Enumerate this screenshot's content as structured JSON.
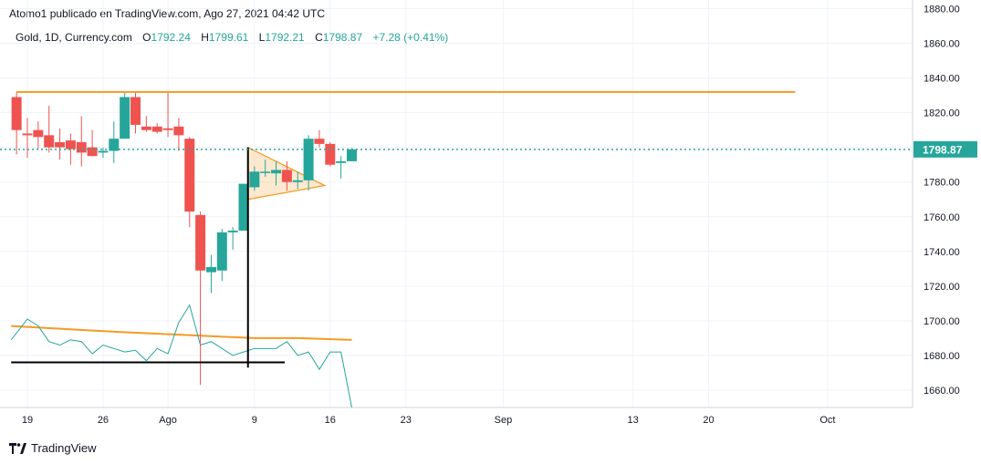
{
  "header": {
    "publisher": "Atomo1 publicado en TradingView.com, Ago 27, 2021 04:42 UTC"
  },
  "legend": {
    "symbol": "Gold, 1D, Currency.com",
    "open_label": "O",
    "open": "1792.24",
    "high_label": "H",
    "high": "1799.61",
    "low_label": "L",
    "low": "1792.21",
    "close_label": "C",
    "close": "1798.87",
    "change": "+7.28 (+0.41%)"
  },
  "footer": {
    "brand": "TradingView"
  },
  "colors": {
    "up": "#26a69a",
    "down": "#ef5350",
    "orange": "#f59a23",
    "price_label_bg": "#26a69a",
    "grid": "#f0f3fa",
    "axis_text": "#131722"
  },
  "chart_data": {
    "type": "candlestick",
    "title": "Gold, 1D, Currency.com",
    "ylim": [
      1650,
      1885
    ],
    "y_ticks": [
      "1880.00",
      "1860.00",
      "1840.00",
      "1820.00",
      "1800.00",
      "1780.00",
      "1760.00",
      "1740.00",
      "1720.00",
      "1700.00",
      "1680.00",
      "1660.00"
    ],
    "x_ticks": [
      {
        "label": "19",
        "day": 0
      },
      {
        "label": "26",
        "day": 7
      },
      {
        "label": "Ago",
        "day": 13
      },
      {
        "label": "9",
        "day": 21
      },
      {
        "label": "16",
        "day": 28
      },
      {
        "label": "23",
        "day": 35
      },
      {
        "label": "Sep",
        "day": 44
      },
      {
        "label": "13",
        "day": 56
      },
      {
        "label": "20",
        "day": 63
      },
      {
        "label": "Oct",
        "day": 74
      }
    ],
    "current_price": "1798.87",
    "candles": [
      {
        "day": -1,
        "o": 1829,
        "h": 1832,
        "l": 1796,
        "c": 1810
      },
      {
        "day": 0,
        "o": 1808,
        "h": 1817,
        "l": 1794,
        "c": 1807
      },
      {
        "day": 1,
        "o": 1810,
        "h": 1815,
        "l": 1799,
        "c": 1806
      },
      {
        "day": 2,
        "o": 1807,
        "h": 1824,
        "l": 1797,
        "c": 1800
      },
      {
        "day": 3,
        "o": 1803,
        "h": 1811,
        "l": 1793,
        "c": 1800
      },
      {
        "day": 4,
        "o": 1804,
        "h": 1808,
        "l": 1790,
        "c": 1799
      },
      {
        "day": 5,
        "o": 1803,
        "h": 1818,
        "l": 1789,
        "c": 1797
      },
      {
        "day": 6,
        "o": 1800,
        "h": 1810,
        "l": 1795,
        "c": 1795
      },
      {
        "day": 7,
        "o": 1797,
        "h": 1800,
        "l": 1794,
        "c": 1798
      },
      {
        "day": 8,
        "o": 1798,
        "h": 1815,
        "l": 1791,
        "c": 1805
      },
      {
        "day": 9,
        "o": 1805,
        "h": 1832,
        "l": 1805,
        "c": 1829
      },
      {
        "day": 10,
        "o": 1829,
        "h": 1832,
        "l": 1808,
        "c": 1813
      },
      {
        "day": 11,
        "o": 1812,
        "h": 1818,
        "l": 1809,
        "c": 1810
      },
      {
        "day": 12,
        "o": 1812,
        "h": 1814,
        "l": 1808,
        "c": 1809
      },
      {
        "day": 13,
        "o": 1811,
        "h": 1832,
        "l": 1806,
        "c": 1810
      },
      {
        "day": 14,
        "o": 1812,
        "h": 1817,
        "l": 1798,
        "c": 1807
      },
      {
        "day": 15,
        "o": 1805,
        "h": 1806,
        "l": 1754,
        "c": 1763
      },
      {
        "day": 16,
        "o": 1761,
        "h": 1763,
        "l": 1663,
        "c": 1729
      },
      {
        "day": 17,
        "o": 1728,
        "h": 1738,
        "l": 1716,
        "c": 1731
      },
      {
        "day": 18,
        "o": 1729,
        "h": 1753,
        "l": 1723,
        "c": 1751
      },
      {
        "day": 19,
        "o": 1751,
        "h": 1754,
        "l": 1741,
        "c": 1752
      },
      {
        "day": 20,
        "o": 1752,
        "h": 1779,
        "l": 1752,
        "c": 1779
      },
      {
        "day": 21,
        "o": 1777,
        "h": 1789,
        "l": 1775,
        "c": 1786
      },
      {
        "day": 22,
        "o": 1786,
        "h": 1793,
        "l": 1783,
        "c": 1786
      },
      {
        "day": 23,
        "o": 1785,
        "h": 1792,
        "l": 1778,
        "c": 1787
      },
      {
        "day": 24,
        "o": 1787,
        "h": 1792,
        "l": 1775,
        "c": 1780
      },
      {
        "day": 25,
        "o": 1780,
        "h": 1786,
        "l": 1776,
        "c": 1781
      },
      {
        "day": 26,
        "o": 1781,
        "h": 1807,
        "l": 1775,
        "c": 1805
      },
      {
        "day": 27,
        "o": 1805,
        "h": 1810,
        "l": 1800,
        "c": 1802
      },
      {
        "day": 28,
        "o": 1802,
        "h": 1803,
        "l": 1789,
        "c": 1790
      },
      {
        "day": 29,
        "o": 1791,
        "h": 1795,
        "l": 1782,
        "c": 1792
      },
      {
        "day": 30,
        "o": 1792,
        "h": 1799.61,
        "l": 1792.21,
        "c": 1798.87
      }
    ],
    "horizontal_line": {
      "price": 1832,
      "from_day": -1,
      "to_day": 71
    },
    "triangle": [
      {
        "day": 20.4,
        "price": 1800
      },
      {
        "day": 20.4,
        "price": 1770
      },
      {
        "day": 27.5,
        "price": 1778
      }
    ],
    "vertical_line": {
      "day": 20.4,
      "from_price": 1800,
      "to_price": 1673
    },
    "support_line": {
      "price": 1676,
      "from_day": -1.5,
      "to_day": 23.8
    },
    "ma_line": [
      {
        "day": -1.5,
        "v": 1697
      },
      {
        "day": 7,
        "v": 1694
      },
      {
        "day": 14,
        "v": 1692
      },
      {
        "day": 21,
        "v": 1690
      },
      {
        "day": 25,
        "v": 1690
      },
      {
        "day": 30,
        "v": 1689
      }
    ],
    "oscillator_line": [
      {
        "day": -1.5,
        "v": 1689
      },
      {
        "day": 0,
        "v": 1701
      },
      {
        "day": 1,
        "v": 1697
      },
      {
        "day": 2,
        "v": 1688
      },
      {
        "day": 3,
        "v": 1686
      },
      {
        "day": 4,
        "v": 1689
      },
      {
        "day": 5,
        "v": 1688
      },
      {
        "day": 6,
        "v": 1681
      },
      {
        "day": 7,
        "v": 1686
      },
      {
        "day": 8,
        "v": 1684
      },
      {
        "day": 9,
        "v": 1682
      },
      {
        "day": 10,
        "v": 1683
      },
      {
        "day": 11,
        "v": 1677
      },
      {
        "day": 12,
        "v": 1684
      },
      {
        "day": 13,
        "v": 1681
      },
      {
        "day": 14,
        "v": 1699
      },
      {
        "day": 15,
        "v": 1709
      },
      {
        "day": 16,
        "v": 1686
      },
      {
        "day": 17,
        "v": 1688
      },
      {
        "day": 18,
        "v": 1684
      },
      {
        "day": 19,
        "v": 1680
      },
      {
        "day": 20,
        "v": 1682
      },
      {
        "day": 21,
        "v": 1684
      },
      {
        "day": 22,
        "v": 1684
      },
      {
        "day": 23,
        "v": 1684
      },
      {
        "day": 24,
        "v": 1688
      },
      {
        "day": 25,
        "v": 1680
      },
      {
        "day": 26,
        "v": 1682
      },
      {
        "day": 27,
        "v": 1672
      },
      {
        "day": 28,
        "v": 1682
      },
      {
        "day": 29,
        "v": 1682
      },
      {
        "day": 30,
        "v": 1650
      }
    ]
  }
}
